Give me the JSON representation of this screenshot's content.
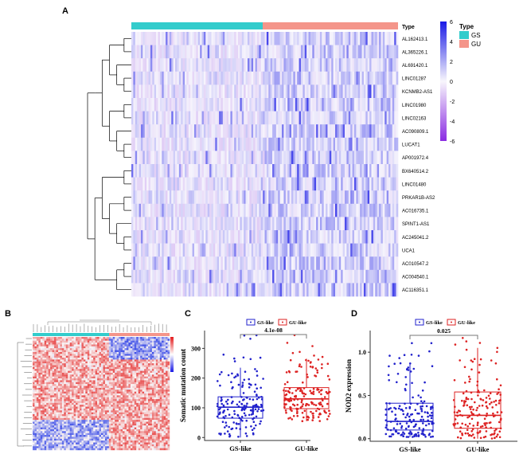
{
  "panels": {
    "a": "A",
    "b": "B",
    "c": "C",
    "d": "D"
  },
  "panel_a": {
    "annotation_title": "Type",
    "genes": [
      "AL162413.1",
      "AL365226.1",
      "AL691420.1",
      "LINC01287",
      "KCNMB2-AS1",
      "LINC01980",
      "LINC02163",
      "AC090809.1",
      "LUCAT1",
      "AP001972.4",
      "BX640514.2",
      "LINC01480",
      "PRKAR1B-AS2",
      "AC016735.1",
      "SPINT1-AS1",
      "AC245041.2",
      "UCA1",
      "AC010547.2",
      "AC004540.1",
      "AC116351.1"
    ],
    "colorbar_ticks": [
      "6",
      "4",
      "2",
      "0",
      "-2",
      "-4",
      "-6"
    ],
    "colorbar_colors": {
      "high": "#1a1ae6",
      "mid": "#f8f6fc",
      "low": "#8a2be2"
    },
    "legend": {
      "title": "Type",
      "items": [
        {
          "label": "GS",
          "color": "#33cccc"
        },
        {
          "label": "GU",
          "color": "#f4958a"
        }
      ]
    }
  },
  "chart_data": [
    {
      "type": "box",
      "panel": "C",
      "title": "",
      "ylabel": "Somatic mutation count",
      "xlabel": "",
      "categories": [
        "GS-like",
        "GU-like"
      ],
      "legend": [
        "GS-like",
        "GU-like"
      ],
      "colors": [
        "#2222cc",
        "#dd2222"
      ],
      "ylim": [
        -10,
        360
      ],
      "yticks": [
        "0",
        "100",
        "200",
        "300"
      ],
      "pvalue": "4.1e-08",
      "series": [
        {
          "name": "GS-like",
          "min": 0,
          "q1": 65,
          "median": 102,
          "q3": 137,
          "max": 235
        },
        {
          "name": "GU-like",
          "min": 55,
          "q1": 97,
          "median": 130,
          "q3": 168,
          "max": 265
        }
      ]
    },
    {
      "type": "box",
      "panel": "D",
      "title": "",
      "ylabel": "NOD2 expression",
      "xlabel": "",
      "categories": [
        "GS-like",
        "GU-like"
      ],
      "legend": [
        "GS-like",
        "GU-like"
      ],
      "colors": [
        "#2222cc",
        "#dd2222"
      ],
      "ylim": [
        -0.03,
        1.25
      ],
      "yticks": [
        "0.0",
        "0.5",
        "1.0"
      ],
      "pvalue": "0.025",
      "series": [
        {
          "name": "GS-like",
          "min": 0.02,
          "q1": 0.1,
          "median": 0.2,
          "q3": 0.41,
          "max": 0.88
        },
        {
          "name": "GU-like",
          "min": 0.0,
          "q1": 0.12,
          "median": 0.27,
          "q3": 0.54,
          "max": 1.05
        }
      ]
    }
  ]
}
